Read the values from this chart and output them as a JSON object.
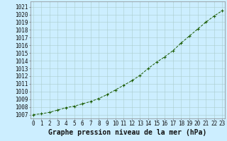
{
  "x": [
    0,
    1,
    2,
    3,
    4,
    5,
    6,
    7,
    8,
    9,
    10,
    11,
    12,
    13,
    14,
    15,
    16,
    17,
    18,
    19,
    20,
    21,
    22,
    23
  ],
  "y": [
    1007.0,
    1007.1,
    1007.3,
    1007.6,
    1007.9,
    1008.1,
    1008.4,
    1008.7,
    1009.1,
    1009.6,
    1010.2,
    1010.8,
    1011.4,
    1012.1,
    1013.0,
    1013.8,
    1014.5,
    1015.3,
    1016.3,
    1017.2,
    1018.1,
    1019.0,
    1019.8,
    1020.5
  ],
  "line_color": "#1a5c00",
  "marker": "+",
  "bg_color": "#cceeff",
  "grid_color": "#aacccc",
  "ylabel_values": [
    1007,
    1008,
    1009,
    1010,
    1011,
    1012,
    1013,
    1014,
    1015,
    1016,
    1017,
    1018,
    1019,
    1020,
    1021
  ],
  "xlabel_label": "Graphe pression niveau de la mer (hPa)",
  "ylim_min": 1006.5,
  "ylim_max": 1021.7,
  "xlim_min": -0.3,
  "xlim_max": 23.3,
  "tick_fontsize": 5.5,
  "label_fontsize": 7.0
}
